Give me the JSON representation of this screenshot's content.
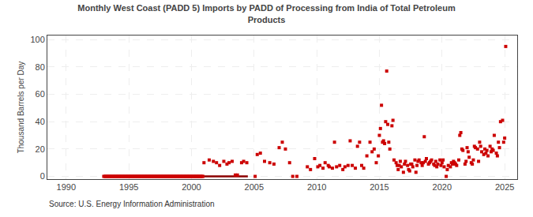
{
  "chart_data": {
    "type": "scatter",
    "title": "Monthly West Coast (PADD 5) Imports by PADD of Processing from India of Total Petroleum\nProducts",
    "ylabel": "Thousand Barrels per Day",
    "annotations": [
      "Source: U.S. Energy Information Administration"
    ],
    "xlim": [
      1988.5,
      2026.0
    ],
    "ylim": [
      -2,
      103
    ],
    "xticks": [
      1990,
      1995,
      2000,
      2005,
      2010,
      2015,
      2020,
      2025
    ],
    "yticks": [
      0,
      20,
      40,
      60,
      80,
      100
    ],
    "grid": true,
    "series": [
      {
        "type": "line",
        "color": "#8b0000",
        "line_style": "solid",
        "x": [
          1993.0,
          2004.5
        ],
        "values": [
          0,
          0
        ]
      },
      {
        "type": "scatter",
        "color": "#cc0000",
        "marker": "square",
        "x": [
          1993.0,
          1993.083,
          1993.167,
          1993.25,
          1993.333,
          1993.417,
          1993.5,
          1993.583,
          1993.667,
          1993.75,
          1993.833,
          1993.917,
          1994.0,
          1994.083,
          1994.167,
          1994.25,
          1994.333,
          1994.417,
          1994.5,
          1994.583,
          1994.667,
          1994.75,
          1994.833,
          1994.917,
          1995.0,
          1995.083,
          1995.167,
          1995.25,
          1995.333,
          1995.417,
          1995.5,
          1995.583,
          1995.667,
          1995.75,
          1995.833,
          1995.917,
          1996.0,
          1996.083,
          1996.167,
          1996.25,
          1996.333,
          1996.417,
          1996.5,
          1996.583,
          1996.667,
          1996.75,
          1996.833,
          1996.917,
          1997.0,
          1997.083,
          1997.167,
          1997.25,
          1997.333,
          1997.417,
          1997.5,
          1997.583,
          1997.667,
          1997.75,
          1997.833,
          1997.917,
          1998.0,
          1998.083,
          1998.167,
          1998.25,
          1998.333,
          1998.417,
          1998.5,
          1998.583,
          1998.667,
          1998.75,
          1998.833,
          1998.917,
          1999.0,
          1999.083,
          1999.167,
          1999.25,
          1999.333,
          1999.417,
          1999.5,
          1999.583,
          1999.667,
          1999.75,
          1999.833,
          1999.917,
          2000.0,
          2000.083,
          2000.167,
          2000.25,
          2000.333,
          2000.417,
          2000.5,
          2000.583,
          2000.667,
          2000.75,
          2000.833,
          2000.917,
          2001.0,
          2001.417,
          2001.75,
          2002.0,
          2002.25,
          2002.583,
          2002.833,
          2003.0,
          2003.25,
          2003.5,
          2003.667,
          2004.0,
          2004.167,
          2004.417,
          2005.083,
          2005.25,
          2005.5,
          2005.833,
          2006.25,
          2006.583,
          2007.0,
          2007.25,
          2007.5,
          2007.833,
          2008.083,
          2008.417,
          2009.25,
          2009.5,
          2009.833,
          2010.083,
          2010.25,
          2010.5,
          2010.667,
          2010.917,
          2011.0,
          2011.25,
          2011.417,
          2011.583,
          2011.833,
          2012.083,
          2012.25,
          2012.5,
          2012.667,
          2012.833,
          2013.083,
          2013.25,
          2013.417,
          2013.583,
          2013.75,
          2014.0,
          2014.25,
          2014.417,
          2014.583,
          2014.75,
          2014.917,
          2015.0,
          2015.083,
          2015.167,
          2015.25,
          2015.333,
          2015.417,
          2015.5,
          2015.583,
          2015.667,
          2015.75,
          2015.833,
          2016.0,
          2016.083,
          2016.167,
          2016.333,
          2016.417,
          2016.5,
          2016.583,
          2016.667,
          2016.75,
          2016.917,
          2017.0,
          2017.083,
          2017.25,
          2017.333,
          2017.417,
          2017.5,
          2017.583,
          2017.667,
          2017.833,
          2017.917,
          2018.0,
          2018.083,
          2018.167,
          2018.333,
          2018.417,
          2018.5,
          2018.583,
          2018.667,
          2018.75,
          2018.917,
          2019.0,
          2019.083,
          2019.167,
          2019.333,
          2019.417,
          2019.5,
          2019.583,
          2019.667,
          2019.833,
          2019.917,
          2020.0,
          2020.083,
          2020.167,
          2020.333,
          2020.417,
          2020.5,
          2020.667,
          2020.75,
          2020.833,
          2020.917,
          2021.0,
          2021.083,
          2021.167,
          2021.333,
          2021.417,
          2021.5,
          2021.583,
          2021.667,
          2021.833,
          2021.917,
          2022.0,
          2022.083,
          2022.167,
          2022.333,
          2022.417,
          2022.5,
          2022.583,
          2022.667,
          2022.833,
          2022.917,
          2023.0,
          2023.083,
          2023.167,
          2023.333,
          2023.417,
          2023.5,
          2023.583,
          2023.667,
          2023.833,
          2023.917,
          2024.0,
          2024.083,
          2024.167,
          2024.333,
          2024.417,
          2024.5,
          2024.583,
          2024.667,
          2024.833,
          2024.917,
          2025.0,
          2025.083
        ],
        "values": [
          0,
          0,
          0,
          0,
          0,
          0,
          0,
          0,
          0,
          0,
          0,
          0,
          0,
          0,
          0,
          0,
          0,
          0,
          0,
          0,
          0,
          0,
          0,
          0,
          0,
          0,
          0,
          0,
          0,
          0,
          0,
          0,
          0,
          0,
          0,
          0,
          0,
          0,
          0,
          0,
          0,
          0,
          0,
          0,
          0,
          0,
          0,
          0,
          0,
          0,
          0,
          0,
          0,
          0,
          0,
          0,
          0,
          0,
          0,
          0,
          0,
          0,
          0,
          0,
          0,
          0,
          0,
          0,
          0,
          0,
          0,
          0,
          0,
          0,
          0,
          0,
          0,
          0,
          0,
          0,
          0,
          0,
          0,
          0,
          0,
          0,
          0,
          0,
          0,
          0,
          0,
          0,
          0,
          0,
          0,
          0,
          10,
          12,
          11,
          10,
          8,
          11,
          9,
          10,
          11,
          1,
          1,
          10,
          11,
          10,
          0,
          16,
          17,
          11,
          10,
          9,
          21,
          25,
          20,
          10,
          0,
          0,
          7,
          5,
          13,
          7,
          8,
          6,
          10,
          8,
          7,
          6,
          25,
          7,
          8,
          5,
          7,
          8,
          26,
          8,
          6,
          22,
          25,
          8,
          6,
          15,
          25,
          18,
          20,
          10,
          15,
          30,
          35,
          52,
          25,
          26,
          24,
          40,
          77,
          38,
          25,
          20,
          37,
          41,
          12,
          10,
          8,
          5,
          8,
          11,
          7,
          3,
          9,
          11,
          8,
          5,
          4,
          9,
          9,
          7,
          12,
          3,
          8,
          11,
          12,
          10,
          8,
          10,
          29,
          11,
          13,
          9,
          10,
          11,
          12,
          9,
          8,
          11,
          7,
          9,
          12,
          8,
          10,
          12,
          7,
          0,
          5,
          8,
          7,
          10,
          9,
          11,
          10,
          9,
          8,
          12,
          30,
          32,
          20,
          19,
          9,
          11,
          21,
          18,
          14,
          10,
          9,
          12,
          22,
          21,
          20,
          11,
          25,
          22,
          18,
          16,
          20,
          17,
          19,
          15,
          22,
          18,
          20,
          19,
          30,
          17,
          15,
          25,
          21,
          40,
          41,
          25,
          28,
          95
        ]
      }
    ]
  }
}
